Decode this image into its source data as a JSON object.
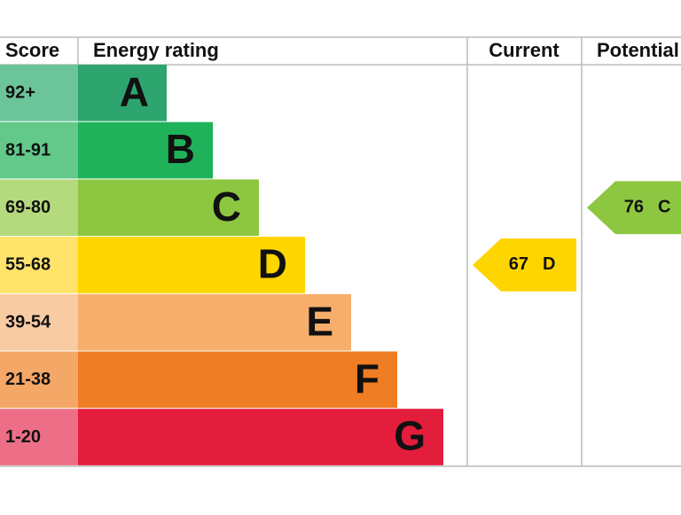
{
  "header": {
    "score": "Score",
    "rating": "Energy rating",
    "current": "Current",
    "potential": "Potential"
  },
  "rows": [
    {
      "score": "92+",
      "letter": "A",
      "color": "#2ea56f",
      "tint": "#6cc49b"
    },
    {
      "score": "81-91",
      "letter": "B",
      "color": "#1fb25a",
      "tint": "#62c98a"
    },
    {
      "score": "69-80",
      "letter": "C",
      "color": "#8dc640",
      "tint": "#b5da7d"
    },
    {
      "score": "55-68",
      "letter": "D",
      "color": "#ffd500",
      "tint": "#ffe36b"
    },
    {
      "score": "39-54",
      "letter": "E",
      "color": "#f7ae6c",
      "tint": "#f9cba3"
    },
    {
      "score": "21-38",
      "letter": "F",
      "color": "#ef7d23",
      "tint": "#f4a766"
    },
    {
      "score": "1-20",
      "letter": "G",
      "color": "#e31d3c",
      "tint": "#ec6f87"
    }
  ],
  "current": {
    "value": 67,
    "letter": "D",
    "color": "#ffd500"
  },
  "potential": {
    "value": 76,
    "letter": "C",
    "color": "#8dc640"
  }
}
